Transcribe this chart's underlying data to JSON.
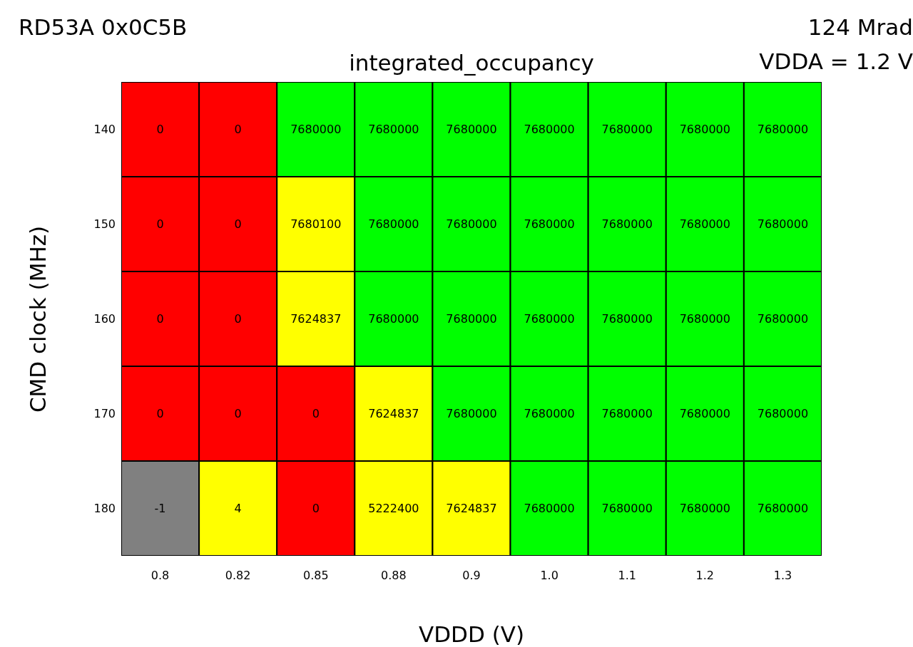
{
  "chart_data": {
    "type": "heatmap",
    "title": "integrated_occupancy",
    "xlabel": "VDDD (V)",
    "ylabel": "CMD clock (MHz)",
    "annotations": [
      "RD53A 0x0C5B",
      "124 Mrad",
      "VDDA = 1.2 V"
    ],
    "categories": [
      "0.8",
      "0.82",
      "0.85",
      "0.88",
      "0.9",
      "1.0",
      "1.1",
      "1.2",
      "1.3"
    ],
    "y_categories": [
      "140",
      "150",
      "160",
      "170",
      "180"
    ],
    "cells": [
      [
        0,
        0,
        7680000,
        7680000,
        7680000,
        7680000,
        7680000,
        7680000,
        7680000
      ],
      [
        0,
        0,
        7680100,
        7680000,
        7680000,
        7680000,
        7680000,
        7680000,
        7680000
      ],
      [
        0,
        0,
        7624837,
        7680000,
        7680000,
        7680000,
        7680000,
        7680000,
        7680000
      ],
      [
        0,
        0,
        0,
        7624837,
        7680000,
        7680000,
        7680000,
        7680000,
        7680000
      ],
      [
        -1,
        4,
        0,
        5222400,
        7624837,
        7680000,
        7680000,
        7680000,
        7680000
      ]
    ],
    "colors": [
      [
        "#ff0000",
        "#ff0000",
        "#00ff00",
        "#00ff00",
        "#00ff00",
        "#00ff00",
        "#00ff00",
        "#00ff00",
        "#00ff00"
      ],
      [
        "#ff0000",
        "#ff0000",
        "#ffff00",
        "#00ff00",
        "#00ff00",
        "#00ff00",
        "#00ff00",
        "#00ff00",
        "#00ff00"
      ],
      [
        "#ff0000",
        "#ff0000",
        "#ffff00",
        "#00ff00",
        "#00ff00",
        "#00ff00",
        "#00ff00",
        "#00ff00",
        "#00ff00"
      ],
      [
        "#ff0000",
        "#ff0000",
        "#ff0000",
        "#ffff00",
        "#00ff00",
        "#00ff00",
        "#00ff00",
        "#00ff00",
        "#00ff00"
      ],
      [
        "#808080",
        "#ffff00",
        "#ff0000",
        "#ffff00",
        "#ffff00",
        "#00ff00",
        "#00ff00",
        "#00ff00",
        "#00ff00"
      ]
    ],
    "data_labels": true
  }
}
